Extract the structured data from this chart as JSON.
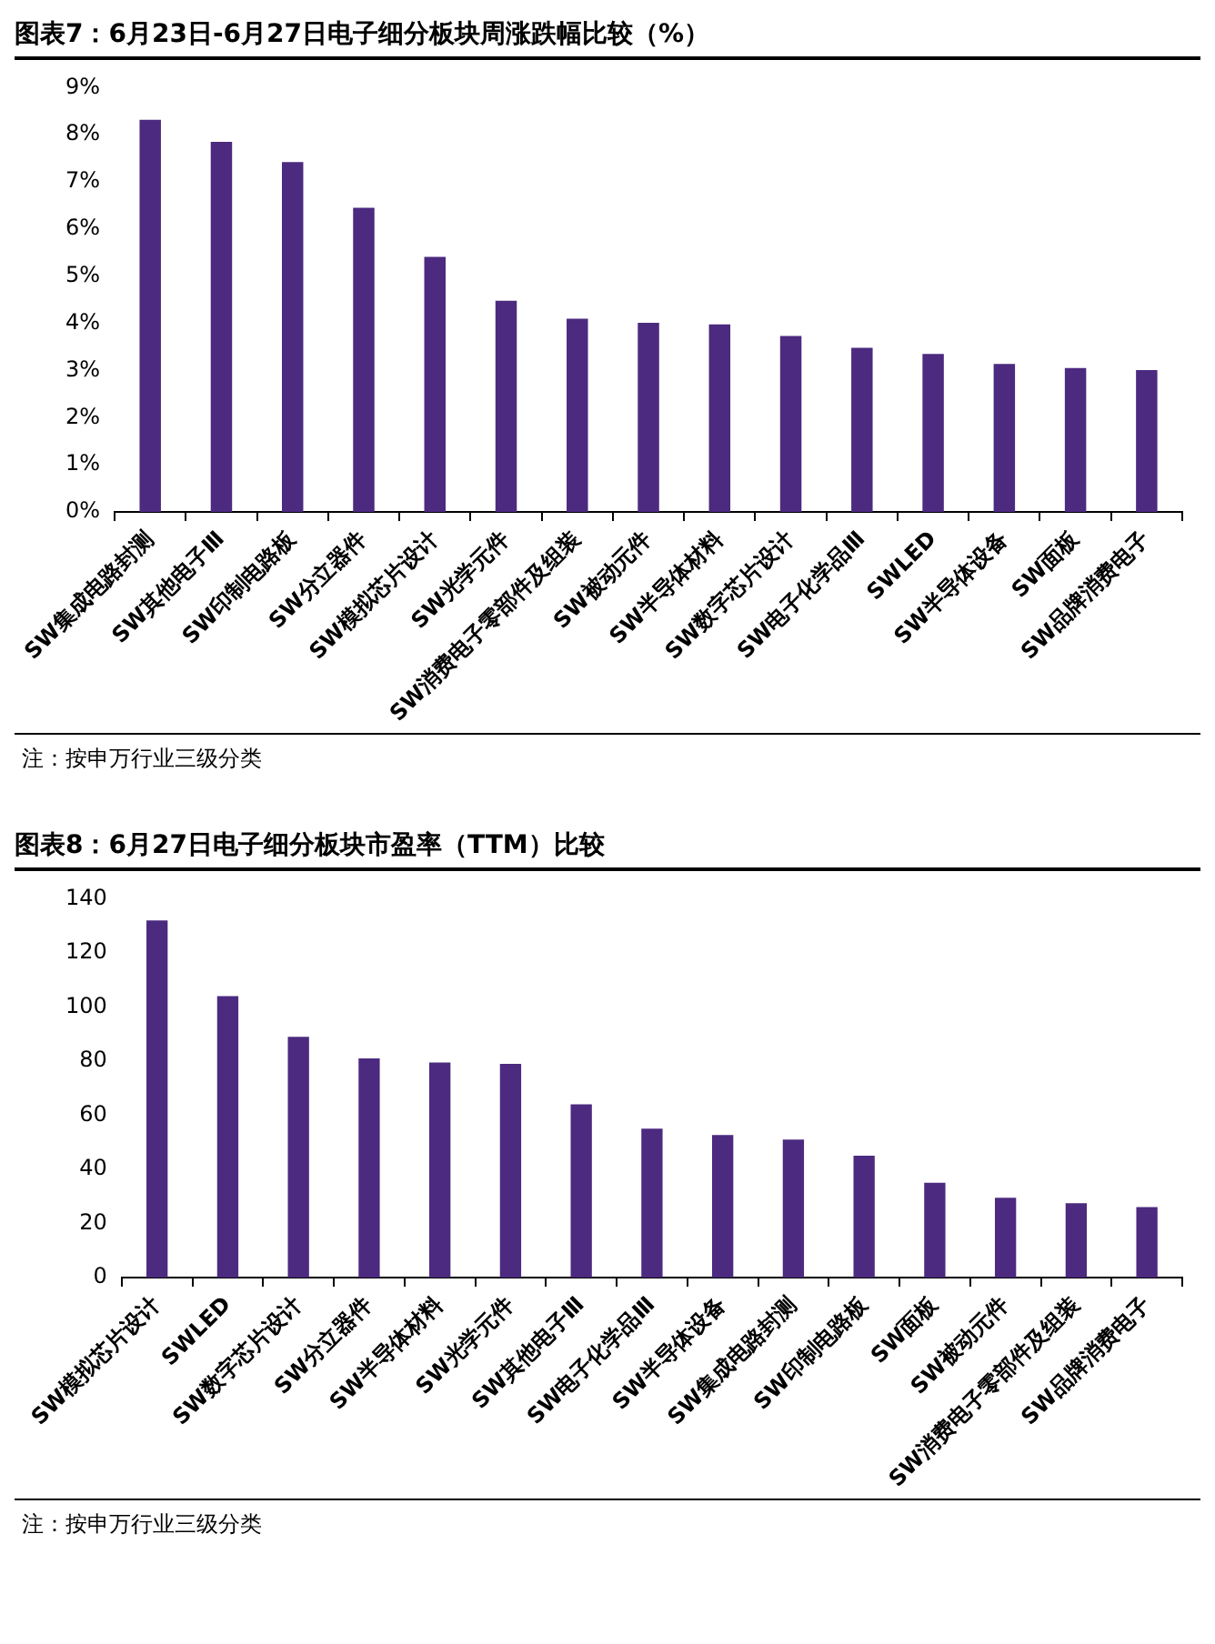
{
  "chart_data": [
    {
      "type": "bar",
      "title": "图表7：6月23日-6月27日电子细分板块周涨跌幅比较（%）",
      "categories": [
        "SW集成电路封测",
        "SW其他电子Ⅲ",
        "SW印制电路板",
        "SW分立器件",
        "SW模拟芯片设计",
        "SW光学元件",
        "SW消费电子零部件及组装",
        "SW被动元件",
        "SW半导体材料",
        "SW数字芯片设计",
        "SW电子化学品Ⅲ",
        "SWLED",
        "SW半导体设备",
        "SW面板",
        "SW品牌消费电子"
      ],
      "values": [
        8.32,
        7.85,
        7.42,
        6.45,
        5.41,
        4.48,
        4.1,
        4.01,
        3.98,
        3.73,
        3.48,
        3.35,
        3.14,
        3.05,
        3.01
      ],
      "color": "#4b2a7f",
      "ylim": [
        0,
        9
      ],
      "yticks": [
        {
          "value": 0,
          "label": "0%"
        },
        {
          "value": 1,
          "label": "1%"
        },
        {
          "value": 2,
          "label": "2%"
        },
        {
          "value": 3,
          "label": "3%"
        },
        {
          "value": 4,
          "label": "4%"
        },
        {
          "value": 5,
          "label": "5%"
        },
        {
          "value": 6,
          "label": "6%"
        },
        {
          "value": 7,
          "label": "7%"
        },
        {
          "value": 8,
          "label": "8%"
        },
        {
          "value": 9,
          "label": "9%"
        }
      ],
      "grid": false,
      "legend": false,
      "annotations": [
        "注：按申万行业三级分类"
      ]
    },
    {
      "type": "bar",
      "title": "图表8：6月27日电子细分板块市盈率（TTM）比较",
      "categories": [
        "SW模拟芯片设计",
        "SWLED",
        "SW数字芯片设计",
        "SW分立器件",
        "SW半导体材料",
        "SW光学元件",
        "SW其他电子Ⅲ",
        "SW电子化学品Ⅲ",
        "SW半导体设备",
        "SW集成电路封测",
        "SW印制电路板",
        "SW面板",
        "SW被动元件",
        "SW消费电子零部件及组装",
        "SW品牌消费电子"
      ],
      "values": [
        132,
        104,
        89,
        81,
        79.5,
        79,
        64,
        55,
        52.7,
        51,
        45,
        35,
        29.5,
        27.5,
        26
      ],
      "color": "#4b2a7f",
      "ylim": [
        0,
        140
      ],
      "yticks": [
        0,
        20,
        40,
        60,
        80,
        100,
        120,
        140
      ],
      "grid": false,
      "legend": false,
      "annotations": [
        "注：按申万行业三级分类"
      ]
    }
  ]
}
